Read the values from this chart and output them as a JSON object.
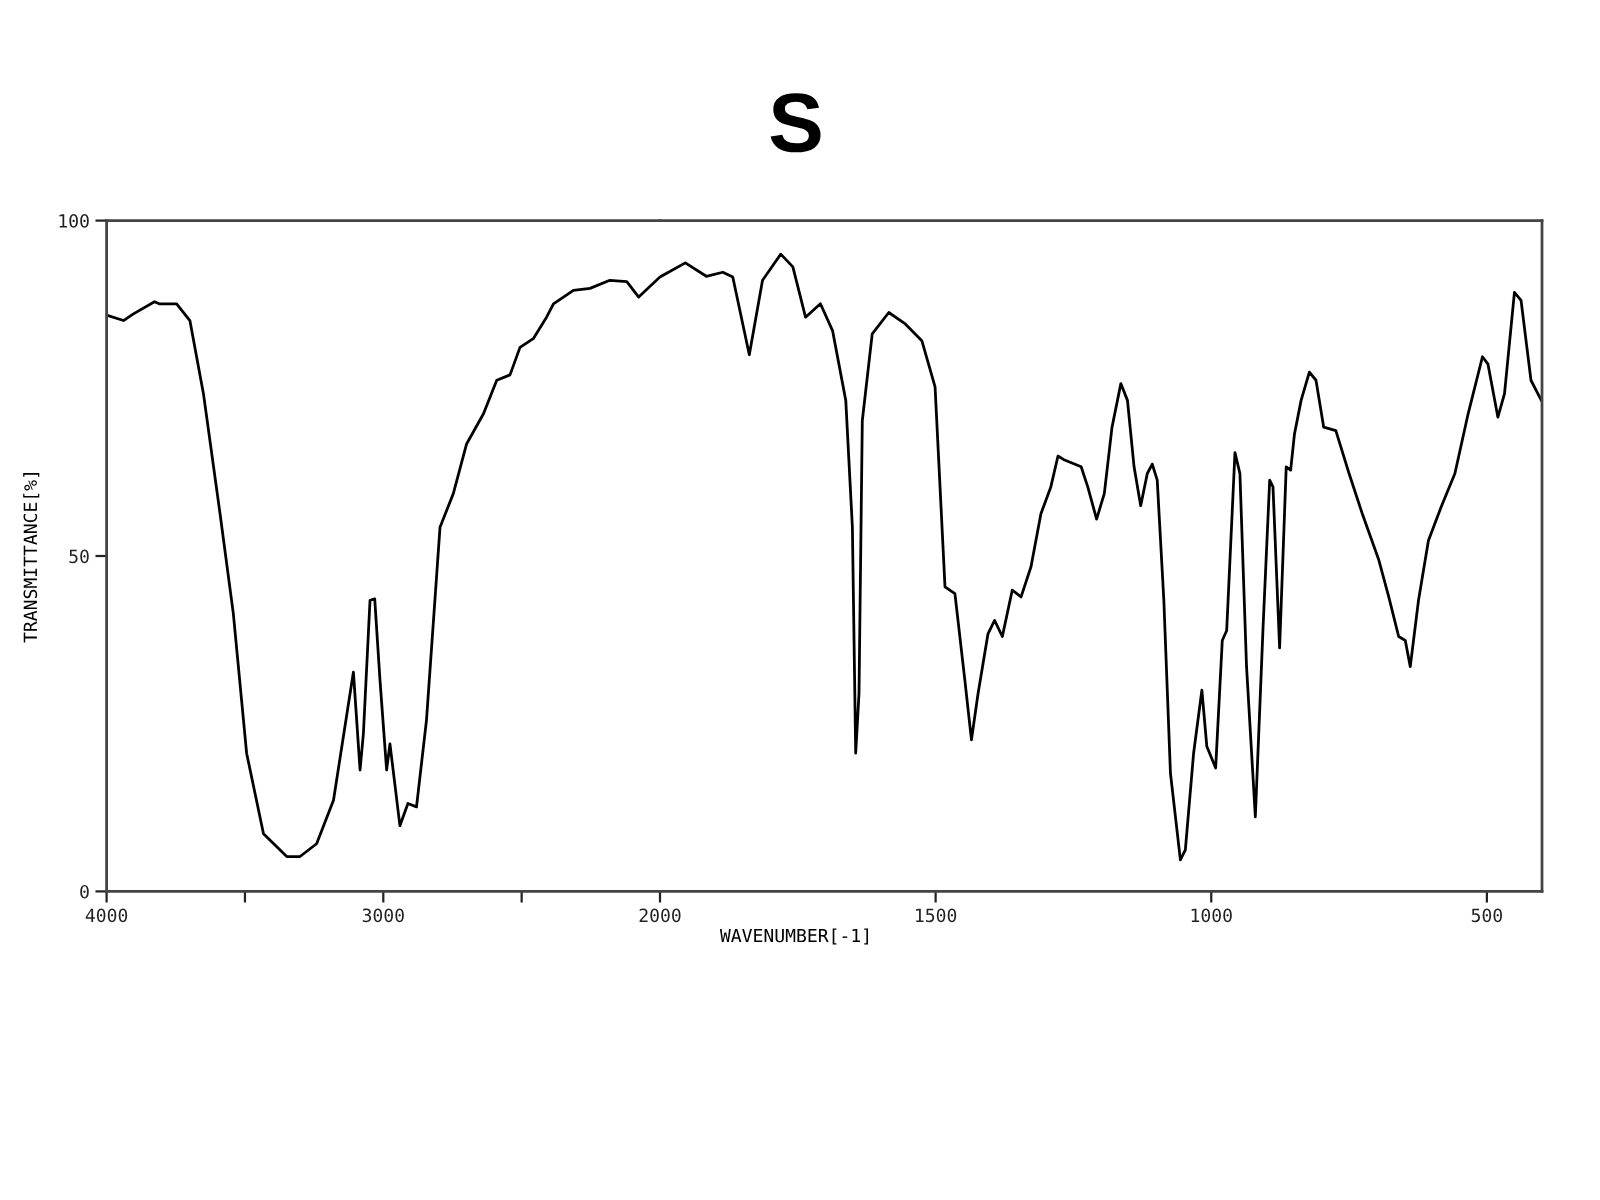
{
  "chart_data": [
    {
      "type": "line",
      "ylabel": "TRANSMITTANCE[%]",
      "xlim": [
        4000,
        2000
      ],
      "xticks": [
        4000,
        {
          "value": 3500,
          "label": null
        },
        3000,
        {
          "value": 2500,
          "label": null
        }
      ],
      "ylim": [
        0,
        100
      ],
      "yticks": [
        0,
        50,
        100
      ],
      "grid": false,
      "series": [
        {
          "color": "#000000",
          "x": [
            4000,
            3939,
            3903,
            3827,
            3810,
            3747,
            3699,
            3650,
            3590,
            3542,
            3494,
            3433,
            3349,
            3301,
            3241,
            3180,
            3108,
            3084,
            3072,
            3048,
            3031,
            3012,
            2988,
            2976,
            2940,
            2911,
            2880,
            2844,
            2795,
            2747,
            2699,
            2638,
            2590,
            2542,
            2506,
            2458,
            2410,
            2385,
            2313,
            2253,
            2181,
            2120,
            2077,
            2000
          ],
          "values": [
            85.9,
            85.1,
            86.1,
            87.9,
            87.6,
            87.6,
            85.1,
            74.2,
            56.3,
            41.4,
            20.6,
            8.6,
            5.2,
            5.2,
            7.1,
            13.6,
            32.7,
            18.1,
            23.5,
            43.4,
            43.6,
            31.5,
            18.1,
            22.0,
            9.8,
            13.1,
            12.6,
            25.5,
            54.3,
            59.3,
            66.7,
            71.2,
            76.2,
            77.0,
            81.1,
            82.4,
            85.6,
            87.6,
            89.6,
            89.9,
            91.1,
            90.9,
            88.6,
            91.6
          ]
        }
      ]
    },
    {
      "type": "line",
      "title": "S",
      "xlabel": "WAVENUMBER[-1]",
      "xlim": [
        2000,
        400
      ],
      "xticks": [
        2000,
        1500,
        1000,
        500
      ],
      "ylim": [
        0,
        100
      ],
      "tick_labels": "x",
      "grid": false,
      "series": [
        {
          "color": "#000000",
          "x": [
            2000,
            1954,
            1916,
            1886,
            1868,
            1838,
            1814,
            1781,
            1759,
            1736,
            1709,
            1687,
            1663,
            1651,
            1645,
            1639,
            1633,
            1615,
            1585,
            1555,
            1525,
            1501,
            1483,
            1465,
            1447,
            1435,
            1423,
            1405,
            1393,
            1379,
            1361,
            1345,
            1327,
            1309,
            1291,
            1278,
            1266,
            1236,
            1224,
            1208,
            1194,
            1180,
            1164,
            1152,
            1140,
            1128,
            1116,
            1107,
            1098,
            1086,
            1074,
            1056,
            1047,
            1032,
            1017,
            1008,
            992,
            980,
            972,
            957,
            948,
            936,
            920,
            906,
            894,
            888,
            876,
            864,
            856,
            849,
            837,
            822,
            810,
            796,
            774,
            750,
            726,
            696,
            678,
            660,
            648,
            639,
            624,
            606,
            583,
            558,
            534,
            508,
            498,
            480,
            468,
            450,
            438,
            420,
            400
          ],
          "values": [
            91.6,
            93.7,
            91.7,
            92.3,
            91.6,
            80.0,
            91.1,
            95.0,
            93.1,
            85.6,
            87.6,
            83.6,
            73.2,
            54.3,
            20.6,
            29.5,
            70.2,
            83.1,
            86.3,
            84.6,
            82.1,
            75.2,
            45.4,
            44.4,
            31.5,
            22.6,
            29.5,
            38.4,
            40.4,
            38.0,
            44.9,
            43.9,
            48.4,
            56.3,
            60.3,
            64.9,
            64.3,
            63.3,
            60.3,
            55.5,
            59.3,
            69.2,
            75.7,
            73.2,
            63.3,
            57.5,
            62.3,
            63.7,
            61.3,
            43.4,
            17.6,
            4.7,
            6.2,
            20.6,
            30.0,
            21.6,
            18.4,
            37.4,
            38.9,
            65.4,
            62.3,
            33.5,
            11.1,
            39.4,
            61.3,
            60.3,
            36.3,
            63.3,
            62.8,
            68.2,
            73.2,
            77.4,
            76.2,
            69.2,
            68.7,
            62.3,
            56.3,
            49.4,
            43.9,
            38.0,
            37.4,
            33.5,
            43.4,
            52.3,
            57.3,
            62.3,
            71.2,
            79.7,
            78.6,
            70.7,
            74.2,
            89.3,
            88.1,
            76.2,
            73.0
          ]
        }
      ]
    }
  ]
}
